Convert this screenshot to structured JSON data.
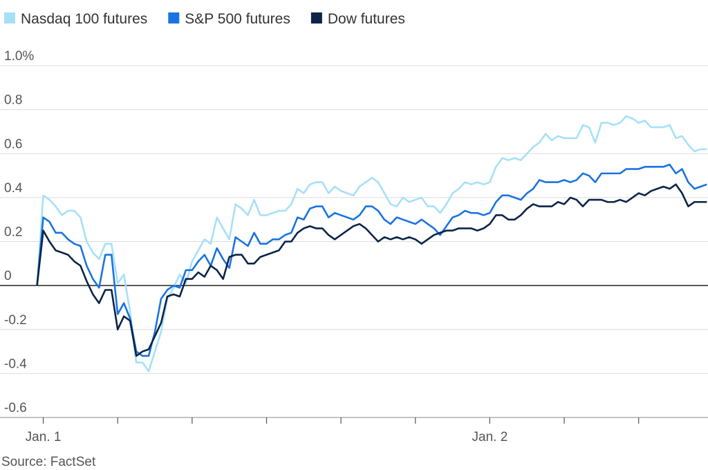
{
  "chart_data": {
    "type": "line",
    "source": "Source: FactSet",
    "categories": [
      null,
      "Jan. 1",
      null,
      null,
      null,
      null,
      null,
      null,
      null,
      null,
      null,
      null,
      null,
      null,
      null,
      null,
      null,
      null,
      null,
      null,
      null,
      null,
      null,
      null,
      null,
      null,
      null,
      null,
      null,
      null,
      null,
      null,
      null,
      null,
      null,
      null,
      null,
      null,
      null,
      null,
      null,
      null,
      null,
      null,
      null,
      null,
      null,
      null,
      null,
      null,
      null,
      null,
      null,
      null,
      null,
      null,
      null,
      null,
      null,
      null,
      null,
      null,
      null,
      null,
      null,
      null,
      null,
      null,
      null,
      null,
      null,
      null,
      null,
      "Jan. 2",
      null,
      null,
      null,
      null,
      null,
      null,
      null,
      null,
      null,
      null,
      null,
      null,
      null,
      null,
      null,
      null,
      null,
      null,
      null,
      null,
      null,
      null,
      null,
      null,
      null,
      null,
      null,
      null,
      null,
      null,
      null,
      null,
      null,
      null,
      null
    ],
    "series": [
      {
        "name": "Nasdaq 100 futures",
        "color": "#a6e0f7",
        "values": [
          0,
          0.41,
          0.39,
          0.36,
          0.32,
          0.34,
          0.34,
          0.31,
          0.2,
          0.15,
          0.12,
          0.19,
          0.19,
          0.01,
          0.05,
          -0.12,
          -0.35,
          -0.35,
          -0.39,
          -0.3,
          -0.21,
          -0.06,
          -0.01,
          0.05,
          0.01,
          0.11,
          0.16,
          0.21,
          0.19,
          0.31,
          0.26,
          0.21,
          0.37,
          0.35,
          0.32,
          0.39,
          0.32,
          0.32,
          0.33,
          0.34,
          0.34,
          0.37,
          0.44,
          0.42,
          0.46,
          0.47,
          0.47,
          0.42,
          0.45,
          0.43,
          0.42,
          0.41,
          0.45,
          0.47,
          0.49,
          0.47,
          0.42,
          0.37,
          0.36,
          0.4,
          0.38,
          0.39,
          0.4,
          0.36,
          0.36,
          0.33,
          0.37,
          0.42,
          0.44,
          0.47,
          0.46,
          0.47,
          0.46,
          0.47,
          0.54,
          0.58,
          0.57,
          0.58,
          0.57,
          0.6,
          0.63,
          0.65,
          0.69,
          0.66,
          0.68,
          0.67,
          0.67,
          0.67,
          0.73,
          0.72,
          0.65,
          0.74,
          0.74,
          0.73,
          0.74,
          0.77,
          0.76,
          0.74,
          0.75,
          0.72,
          0.72,
          0.72,
          0.73,
          0.67,
          0.68,
          0.64,
          0.61,
          0.62,
          0.62
        ]
      },
      {
        "name": "S&P 500 futures",
        "color": "#1a73e0",
        "values": [
          0,
          0.31,
          0.29,
          0.24,
          0.24,
          0.21,
          0.19,
          0.18,
          0.09,
          0.03,
          -0.01,
          0.14,
          0.14,
          -0.13,
          -0.08,
          -0.15,
          -0.3,
          -0.32,
          -0.32,
          -0.21,
          -0.06,
          -0.02,
          0,
          -0.01,
          0.07,
          0.07,
          0.11,
          0.14,
          0.09,
          0.17,
          0.12,
          0.08,
          0.22,
          0.2,
          0.18,
          0.24,
          0.19,
          0.19,
          0.21,
          0.21,
          0.23,
          0.24,
          0.31,
          0.3,
          0.35,
          0.36,
          0.36,
          0.31,
          0.33,
          0.32,
          0.31,
          0.3,
          0.32,
          0.36,
          0.36,
          0.34,
          0.3,
          0.28,
          0.31,
          0.3,
          0.29,
          0.28,
          0.3,
          0.28,
          0.26,
          0.23,
          0.27,
          0.31,
          0.32,
          0.34,
          0.33,
          0.33,
          0.32,
          0.33,
          0.38,
          0.41,
          0.41,
          0.4,
          0.39,
          0.42,
          0.44,
          0.48,
          0.47,
          0.47,
          0.47,
          0.48,
          0.47,
          0.48,
          0.51,
          0.5,
          0.47,
          0.51,
          0.51,
          0.51,
          0.51,
          0.53,
          0.53,
          0.53,
          0.54,
          0.54,
          0.54,
          0.54,
          0.55,
          0.51,
          0.53,
          0.47,
          0.44,
          0.45,
          0.46
        ]
      },
      {
        "name": "Dow futures",
        "color": "#0b2447",
        "values": [
          0,
          0.25,
          0.2,
          0.16,
          0.15,
          0.14,
          0.11,
          0.09,
          0.02,
          -0.04,
          -0.08,
          -0.02,
          -0.02,
          -0.2,
          -0.14,
          -0.16,
          -0.32,
          -0.3,
          -0.29,
          -0.23,
          -0.17,
          -0.05,
          -0.04,
          -0.05,
          0.03,
          0.03,
          0.06,
          0.04,
          0.09,
          0.07,
          0.03,
          0.13,
          0.14,
          0.14,
          0.1,
          0.1,
          0.13,
          0.14,
          0.15,
          0.16,
          0.2,
          0.2,
          0.24,
          0.26,
          0.27,
          0.26,
          0.26,
          0.23,
          0.21,
          0.23,
          0.25,
          0.27,
          0.28,
          0.26,
          0.23,
          0.2,
          0.22,
          0.21,
          0.22,
          0.21,
          0.22,
          0.21,
          0.19,
          0.21,
          0.23,
          0.24,
          0.25,
          0.25,
          0.26,
          0.26,
          0.26,
          0.25,
          0.26,
          0.28,
          0.32,
          0.32,
          0.3,
          0.3,
          0.32,
          0.35,
          0.37,
          0.36,
          0.36,
          0.36,
          0.38,
          0.37,
          0.4,
          0.39,
          0.36,
          0.39,
          0.39,
          0.39,
          0.38,
          0.38,
          0.39,
          0.38,
          0.4,
          0.42,
          0.41,
          0.43,
          0.44,
          0.45,
          0.44,
          0.46,
          0.42,
          0.36,
          0.38,
          0.38,
          0.38
        ]
      }
    ],
    "ylim": [
      -0.6,
      1.0
    ],
    "yticks": [
      -0.6,
      -0.4,
      -0.2,
      0,
      0.2,
      0.4,
      0.6,
      0.8,
      {
        "value": 1.0,
        "label": "1.0%"
      }
    ],
    "grid": true
  }
}
